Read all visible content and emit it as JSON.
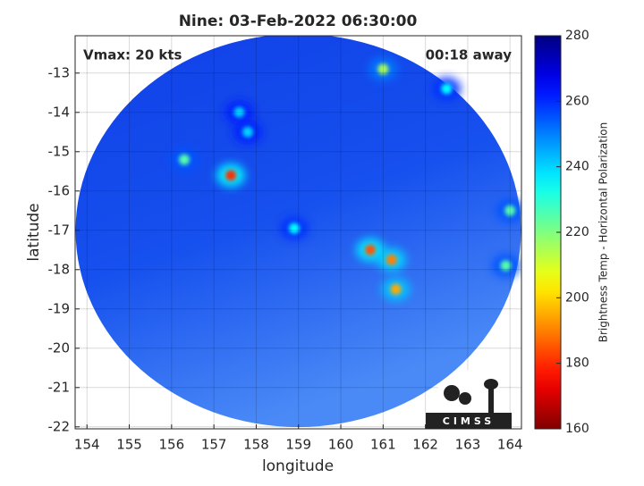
{
  "chart_data": {
    "type": "swath-map",
    "title": "Nine: 03-Feb-2022 06:30:00",
    "annotations": [
      "Vmax: 20 kts",
      "00:18 away"
    ],
    "xlabel": "longitude",
    "ylabel": "latitude",
    "xlim": [
      153.72,
      164.27
    ],
    "ylim": [
      -22.05,
      -12.05
    ],
    "xticks": [
      154,
      155,
      156,
      157,
      158,
      159,
      160,
      161,
      162,
      163,
      164
    ],
    "yticks": [
      -22,
      -21,
      -20,
      -19,
      -18,
      -17,
      -16,
      -15,
      -14,
      -13
    ],
    "grid": true,
    "colormap": "jet-reversed",
    "colorbar_label": "Brightness Temp - Horizontal Polarization",
    "clim": [
      160,
      280
    ],
    "cticks": [
      160,
      180,
      200,
      220,
      240,
      260,
      280
    ],
    "hotspots": {
      "x": [
        157.4,
        156.3,
        160.7,
        161.2,
        161.3,
        161.0,
        164.0,
        163.9,
        158.9,
        157.6,
        162.5,
        157.8
      ],
      "y": [
        -15.6,
        -15.2,
        -17.5,
        -17.75,
        -18.5,
        -12.9,
        -16.5,
        -17.9,
        -16.95,
        -14.0,
        -13.4,
        -14.5
      ],
      "values": [
        180,
        225,
        185,
        190,
        195,
        215,
        225,
        225,
        235,
        240,
        235,
        240
      ]
    },
    "logo": "CIMSS"
  }
}
